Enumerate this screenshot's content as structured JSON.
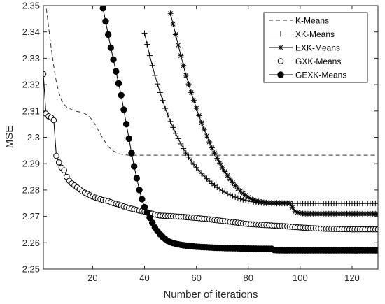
{
  "chart_data": {
    "type": "line",
    "title": "",
    "xlabel": "Number of iterations",
    "ylabel": "MSE",
    "xlim": [
      1,
      130
    ],
    "ylim": [
      2.25,
      2.35
    ],
    "xticks": [
      20,
      40,
      60,
      80,
      100,
      120
    ],
    "yticks": [
      2.25,
      2.26,
      2.27,
      2.28,
      2.29,
      2.3,
      2.31,
      2.32,
      2.33,
      2.34,
      2.35
    ],
    "ytick_labels": [
      "2.25",
      "2.26",
      "2.27",
      "2.28",
      "2.29",
      "2.3",
      "2.31",
      "2.32",
      "2.33",
      "2.34",
      "2.35"
    ],
    "grid": false,
    "legend_position": "top-right",
    "series": [
      {
        "name": "K-Means",
        "style": "dashed",
        "marker": "none",
        "points": [
          [
            1,
            2.362
          ],
          [
            2,
            2.35
          ],
          [
            3,
            2.342
          ],
          [
            4,
            2.334
          ],
          [
            5,
            2.327
          ],
          [
            6,
            2.321
          ],
          [
            7,
            2.317
          ],
          [
            8,
            2.314
          ],
          [
            9,
            2.3125
          ],
          [
            10,
            2.3115
          ],
          [
            12,
            2.3105
          ],
          [
            14,
            2.3098
          ],
          [
            16,
            2.3095
          ],
          [
            18,
            2.3085
          ],
          [
            20,
            2.3065
          ],
          [
            22,
            2.303
          ],
          [
            24,
            2.2995
          ],
          [
            26,
            2.2965
          ],
          [
            28,
            2.2948
          ],
          [
            30,
            2.2938
          ],
          [
            32,
            2.2934
          ],
          [
            34,
            2.2932
          ],
          [
            36,
            2.2932
          ],
          [
            130,
            2.2932
          ]
        ]
      },
      {
        "name": "XK-Means",
        "style": "solid",
        "marker": "plus",
        "points": [
          [
            40,
            2.3395
          ],
          [
            42,
            2.331
          ],
          [
            44,
            2.3235
          ],
          [
            46,
            2.317
          ],
          [
            48,
            2.311
          ],
          [
            50,
            2.306
          ],
          [
            52,
            2.3015
          ],
          [
            54,
            2.2975
          ],
          [
            56,
            2.294
          ],
          [
            58,
            2.291
          ],
          [
            60,
            2.2885
          ],
          [
            62,
            2.2863
          ],
          [
            64,
            2.2843
          ],
          [
            66,
            2.2825
          ],
          [
            68,
            2.281
          ],
          [
            70,
            2.2797
          ],
          [
            72,
            2.2786
          ],
          [
            74,
            2.2777
          ],
          [
            76,
            2.2769
          ],
          [
            78,
            2.2763
          ],
          [
            80,
            2.2758
          ],
          [
            82,
            2.2755
          ],
          [
            84,
            2.2752
          ],
          [
            86,
            2.275
          ],
          [
            88,
            2.2749
          ],
          [
            130,
            2.2749
          ]
        ]
      },
      {
        "name": "EXK-Means",
        "style": "solid",
        "marker": "asterisk",
        "points": [
          [
            50,
            2.347
          ],
          [
            52,
            2.339
          ],
          [
            54,
            2.331
          ],
          [
            56,
            2.3235
          ],
          [
            58,
            2.317
          ],
          [
            60,
            2.311
          ],
          [
            62,
            2.3055
          ],
          [
            64,
            2.3005
          ],
          [
            66,
            2.296
          ],
          [
            68,
            2.292
          ],
          [
            70,
            2.2885
          ],
          [
            72,
            2.2855
          ],
          [
            74,
            2.2828
          ],
          [
            76,
            2.2805
          ],
          [
            78,
            2.2787
          ],
          [
            80,
            2.2772
          ],
          [
            82,
            2.2762
          ],
          [
            84,
            2.2756
          ],
          [
            86,
            2.2753
          ],
          [
            88,
            2.2752
          ],
          [
            96,
            2.275
          ],
          [
            98,
            2.2718
          ],
          [
            100,
            2.2712
          ],
          [
            102,
            2.271
          ],
          [
            130,
            2.271
          ]
        ]
      },
      {
        "name": "GXK-Means",
        "style": "solid",
        "marker": "circle-open",
        "points": [
          [
            1,
            2.324
          ],
          [
            2,
            2.309
          ],
          [
            3,
            2.308
          ],
          [
            4,
            2.3075
          ],
          [
            5,
            2.3065
          ],
          [
            6,
            2.293
          ],
          [
            7,
            2.2905
          ],
          [
            8,
            2.2885
          ],
          [
            9,
            2.2875
          ],
          [
            10,
            2.285
          ],
          [
            11,
            2.2835
          ],
          [
            12,
            2.2825
          ],
          [
            14,
            2.281
          ],
          [
            16,
            2.2795
          ],
          [
            18,
            2.2785
          ],
          [
            20,
            2.2775
          ],
          [
            22,
            2.2768
          ],
          [
            24,
            2.2762
          ],
          [
            26,
            2.2758
          ],
          [
            28,
            2.275
          ],
          [
            30,
            2.2745
          ],
          [
            32,
            2.2738
          ],
          [
            34,
            2.2732
          ],
          [
            36,
            2.2727
          ],
          [
            38,
            2.2722
          ],
          [
            40,
            2.2718
          ],
          [
            42,
            2.2713
          ],
          [
            44,
            2.2707
          ],
          [
            46,
            2.2703
          ],
          [
            48,
            2.2702
          ],
          [
            50,
            2.2701
          ],
          [
            55,
            2.2698
          ],
          [
            60,
            2.2694
          ],
          [
            65,
            2.2689
          ],
          [
            70,
            2.2683
          ],
          [
            75,
            2.2677
          ],
          [
            80,
            2.2671
          ],
          [
            85,
            2.2668
          ],
          [
            90,
            2.2665
          ],
          [
            95,
            2.2662
          ],
          [
            100,
            2.2658
          ],
          [
            105,
            2.2655
          ],
          [
            110,
            2.2653
          ],
          [
            120,
            2.2651
          ],
          [
            130,
            2.2651
          ]
        ]
      },
      {
        "name": "GEXK-Means",
        "style": "solid",
        "marker": "circle-filled",
        "points": [
          [
            24,
            2.349
          ],
          [
            25,
            2.344
          ],
          [
            26,
            2.339
          ],
          [
            27,
            2.334
          ],
          [
            28,
            2.3295
          ],
          [
            29,
            2.325
          ],
          [
            30,
            2.3205
          ],
          [
            31,
            2.316
          ],
          [
            32,
            2.3105
          ],
          [
            33,
            2.305
          ],
          [
            34,
            2.2995
          ],
          [
            35,
            2.294
          ],
          [
            36,
            2.289
          ],
          [
            37,
            2.2845
          ],
          [
            38,
            2.28
          ],
          [
            39,
            2.2765
          ],
          [
            40,
            2.2735
          ],
          [
            41,
            2.2715
          ],
          [
            42,
            2.2695
          ],
          [
            43,
            2.2676
          ],
          [
            44,
            2.2658
          ],
          [
            45,
            2.2644
          ],
          [
            46,
            2.2632
          ],
          [
            47,
            2.2622
          ],
          [
            48,
            2.2614
          ],
          [
            49,
            2.2607
          ],
          [
            50,
            2.2602
          ],
          [
            52,
            2.2596
          ],
          [
            54,
            2.2592
          ],
          [
            56,
            2.2589
          ],
          [
            58,
            2.2587
          ],
          [
            60,
            2.2585
          ],
          [
            65,
            2.2582
          ],
          [
            70,
            2.258
          ],
          [
            75,
            2.2579
          ],
          [
            80,
            2.2578
          ],
          [
            85,
            2.2577
          ],
          [
            89,
            2.2577
          ],
          [
            90,
            2.2572
          ],
          [
            95,
            2.2571
          ],
          [
            100,
            2.2571
          ],
          [
            110,
            2.2571
          ],
          [
            120,
            2.2571
          ],
          [
            130,
            2.2571
          ]
        ]
      }
    ]
  }
}
